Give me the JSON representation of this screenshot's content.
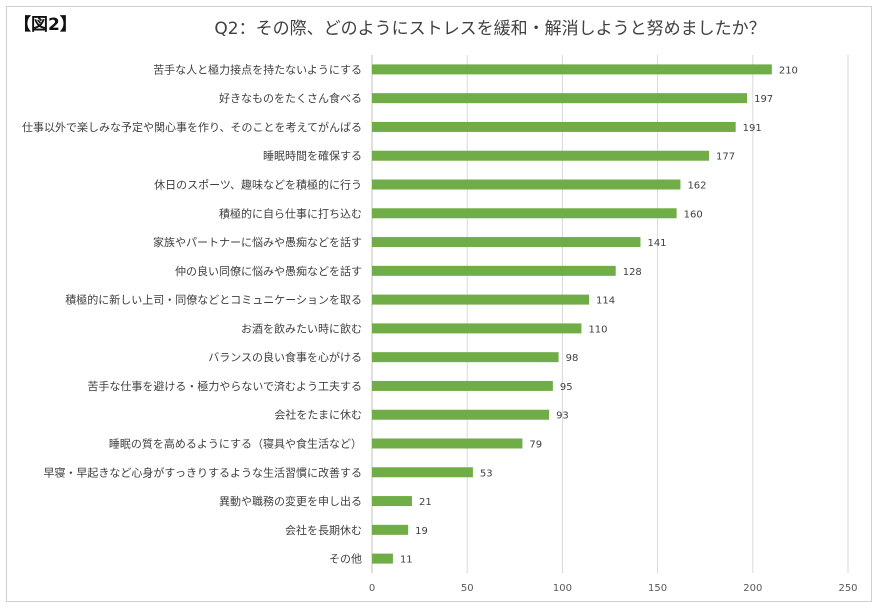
{
  "figure_label": "【図2】",
  "chart_data": {
    "type": "bar",
    "orientation": "horizontal",
    "title": "Q2：その際、どのようにストレスを緩和・解消しようと努めましたか？",
    "categories": [
      "苦手な人と極力接点を持たないようにする",
      "好きなものをたくさん食べる",
      "仕事以外で楽しみな予定や関心事を作り、そのことを考えてがんばる",
      "睡眠時間を確保する",
      "休日のスポーツ、趣味などを積極的に行う",
      "積極的に自ら仕事に打ち込む",
      "家族やパートナーに悩みや愚痴などを話す",
      "仲の良い同僚に悩みや愚痴などを話す",
      "積極的に新しい上司・同僚などとコミュニケーションを取る",
      "お酒を飲みたい時に飲む",
      "バランスの良い食事を心がける",
      "苦手な仕事を避ける・極力やらないで済むよう工夫する",
      "会社をたまに休む",
      "睡眠の質を高めるようにする（寝具や食生活など）",
      "早寝・早起きなど心身がすっきりするような生活習慣に改善する",
      "異動や職務の変更を申し出る",
      "会社を長期休む",
      "その他"
    ],
    "values": [
      210,
      197,
      191,
      177,
      162,
      160,
      141,
      128,
      114,
      110,
      98,
      95,
      93,
      79,
      53,
      21,
      19,
      11
    ],
    "xlim": [
      0,
      250
    ],
    "xticks": [
      0,
      50,
      100,
      150,
      200,
      250
    ],
    "grid": true,
    "bar_color": "#70ad47",
    "grid_color": "#d9d9d9"
  }
}
